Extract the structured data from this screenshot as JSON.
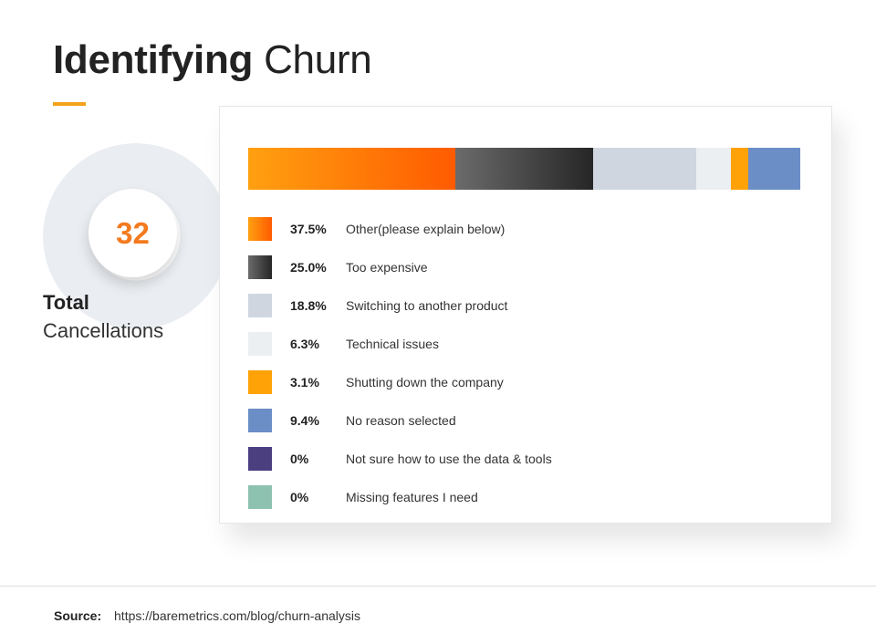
{
  "title": {
    "bold": "Identifying",
    "light": "Churn"
  },
  "kpi": {
    "value": "32",
    "label_line1": "Total",
    "label_line2": "Cancellations"
  },
  "colors": {
    "accent": "#f4a21a",
    "kpi_number": "#f37a1f",
    "ring": "#eaedf1"
  },
  "chart_data": {
    "type": "bar",
    "orientation": "horizontal",
    "stacked": true,
    "categories": [
      "Other(please explain below)",
      "Too expensive",
      "Switching to another product",
      "Technical issues",
      "Shutting down the company",
      "No reason selected",
      "Not sure how to use the data & tools",
      "Missing features I need"
    ],
    "values": [
      37.5,
      25.0,
      18.8,
      6.3,
      3.1,
      9.4,
      0,
      0
    ],
    "value_labels": [
      "37.5%",
      "25.0%",
      "18.8%",
      "6.3%",
      "3.1%",
      "9.4%",
      "0%",
      "0%"
    ],
    "colors": [
      [
        "#ffa010",
        "#ff5b00"
      ],
      [
        "#6b6b6b",
        "#262626"
      ],
      [
        "#cfd6df",
        "#cfd6df"
      ],
      [
        "#eceff2",
        "#eceff2"
      ],
      [
        "#ffa207",
        "#ffa207"
      ],
      [
        "#6b8ec7",
        "#6b8ec7"
      ],
      [
        "#4c3f80",
        "#4c3f80"
      ],
      [
        "#8ec2b0",
        "#8ec2b0"
      ]
    ],
    "legend_position": "below",
    "grid": false
  },
  "source": {
    "label": "Source:",
    "url": "https://baremetrics.com/blog/churn-analysis"
  }
}
